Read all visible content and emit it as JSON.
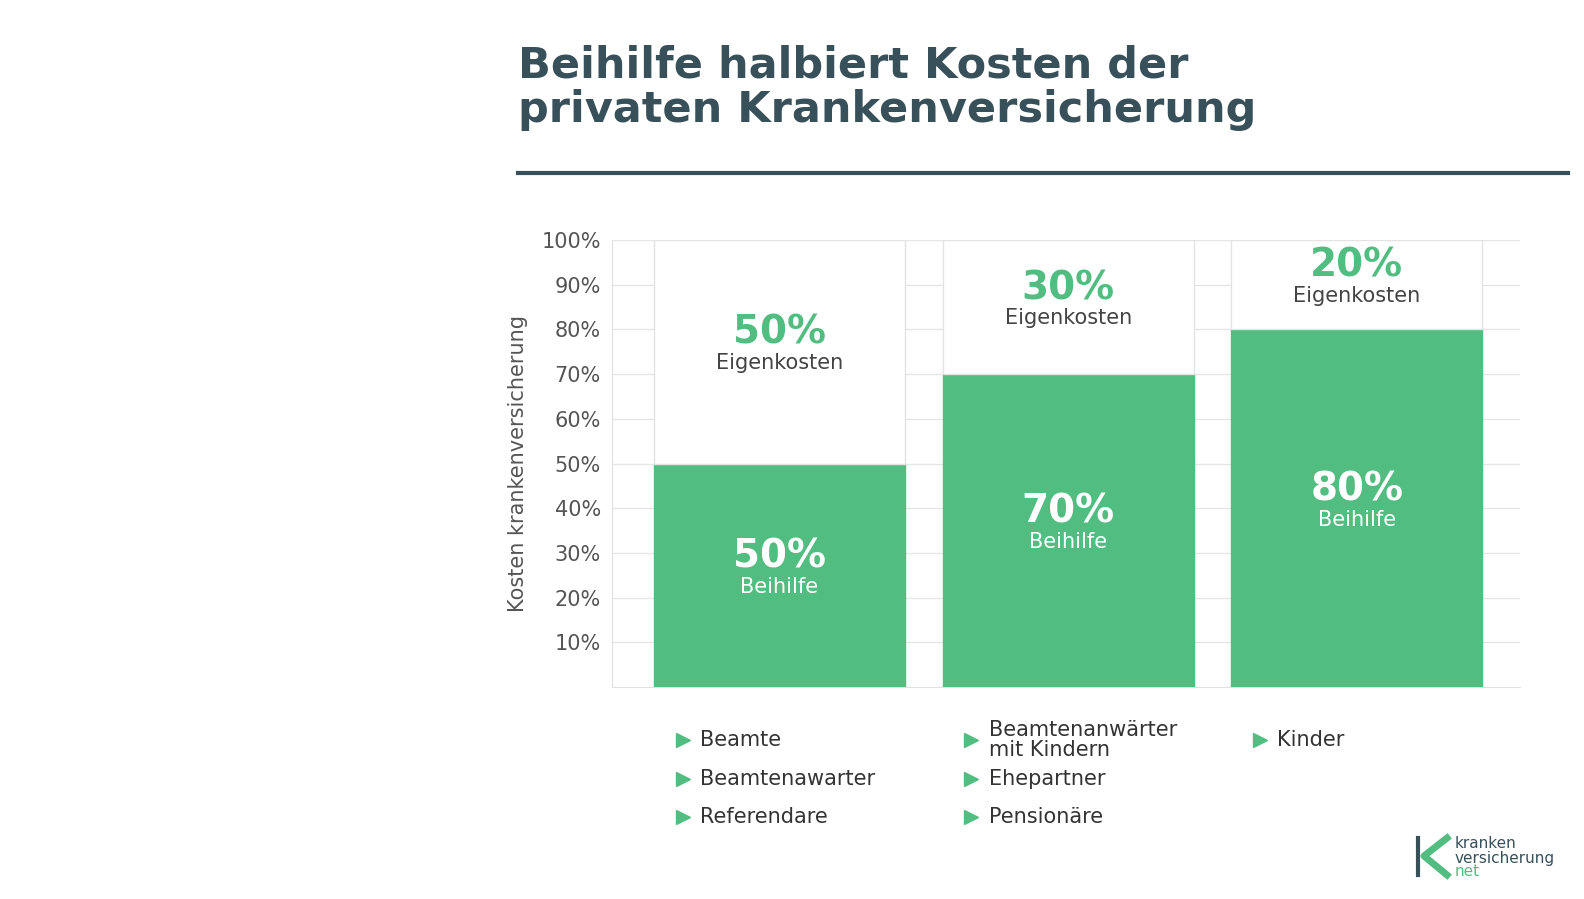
{
  "chart_data": {
    "type": "bar",
    "stacked": true,
    "data_labels": true,
    "title": "Beihilfe halbiert Kosten der\nprivaten Krankenversicherung",
    "y_label": "Kosten krankenversicherung",
    "categories": [
      null,
      null,
      null
    ],
    "category_groups": [
      [
        "Beamte",
        "Beamtenawarter",
        "Referendare"
      ],
      [
        "Beamtenanwärter\nmit Kindern",
        "Ehepartner",
        "Pensionäre"
      ],
      [
        "Kinder"
      ]
    ],
    "series": [
      {
        "name": "Beihilfe",
        "color": "#52bd80",
        "values": [
          50,
          70,
          80
        ],
        "value_labels": [
          "50%",
          "70%",
          "80%"
        ]
      },
      {
        "name": "Eigenkosten",
        "color": "#ffffff",
        "values": [
          50,
          30,
          20
        ],
        "value_labels": [
          "50%",
          "30%",
          "20%"
        ]
      }
    ],
    "ylim": [
      0,
      100
    ],
    "yticks": [
      {
        "value": 10,
        "label": "10%"
      },
      {
        "value": 20,
        "label": "20%"
      },
      {
        "value": 30,
        "label": "30%"
      },
      {
        "value": 40,
        "label": "40%"
      },
      {
        "value": 50,
        "label": "50%"
      },
      {
        "value": 60,
        "label": "60%"
      },
      {
        "value": 70,
        "label": "70%"
      },
      {
        "value": 80,
        "label": "80%"
      },
      {
        "value": 90,
        "label": "90%"
      },
      {
        "value": 100,
        "label": "100%"
      }
    ],
    "grid": true,
    "logo": [
      "kranken",
      "versicherung",
      "net"
    ]
  }
}
